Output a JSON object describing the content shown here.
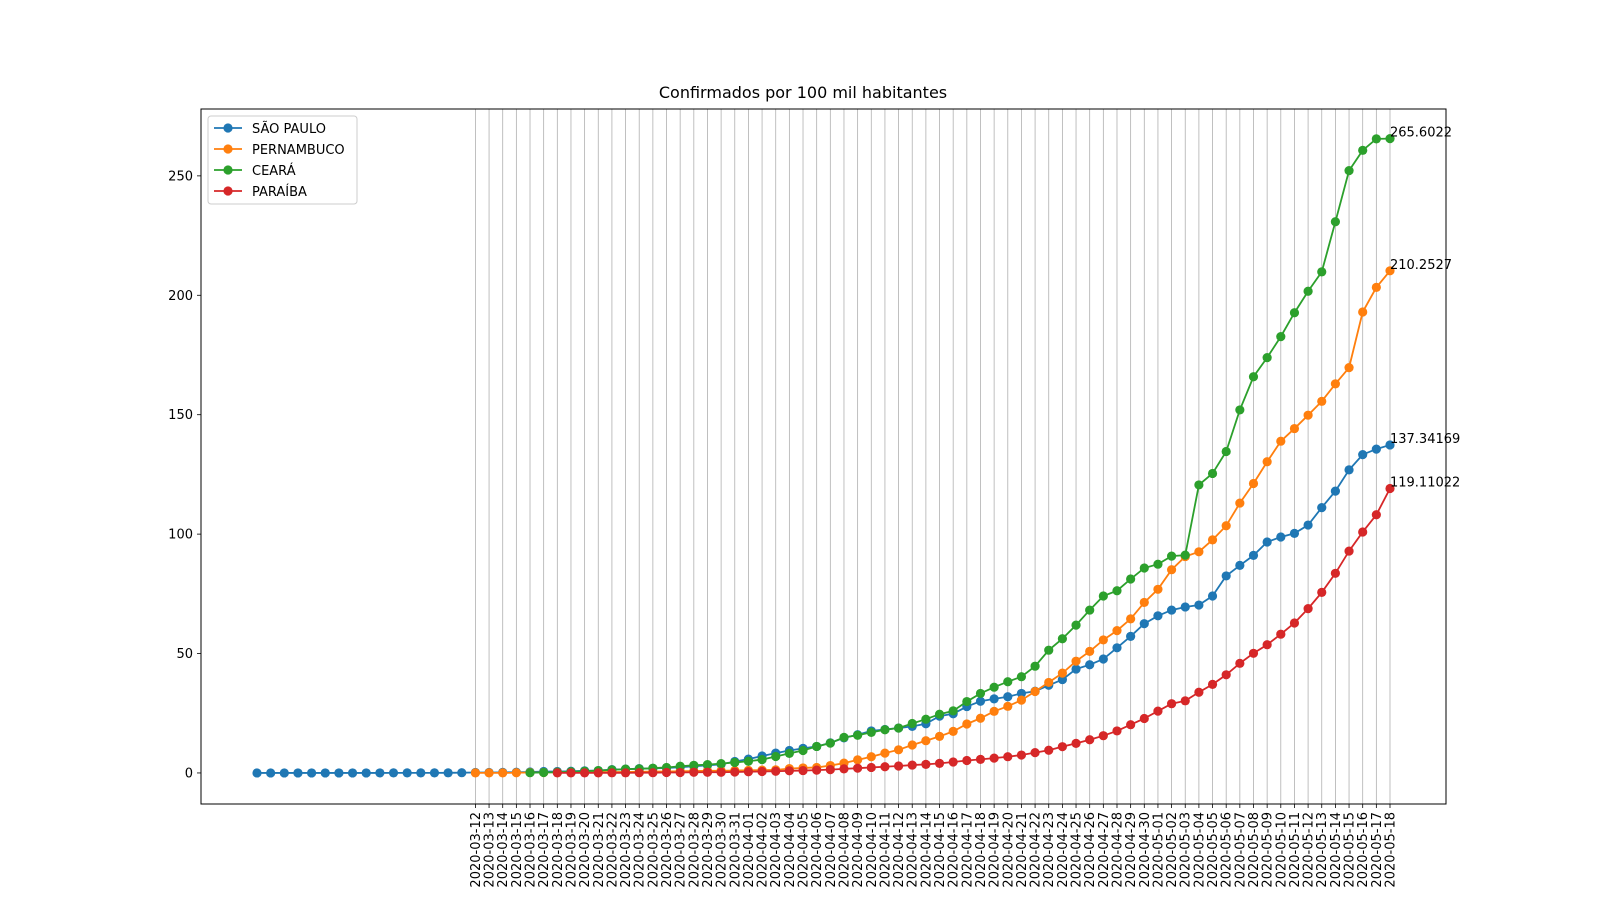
{
  "chart_data": {
    "type": "line",
    "title": "Confirmados por 100 mil habitantes",
    "xlabel": "",
    "ylabel": "",
    "ylim": [
      -13,
      278
    ],
    "yticks": [
      0,
      50,
      100,
      150,
      200,
      250
    ],
    "grid": "vertical lines at labeled dates",
    "legend_position": "top-left",
    "x_tick_labels": [
      "2020-03-12",
      "2020-03-13",
      "2020-03-14",
      "2020-03-15",
      "2020-03-16",
      "2020-03-17",
      "2020-03-18",
      "2020-03-19",
      "2020-03-20",
      "2020-03-21",
      "2020-03-22",
      "2020-03-23",
      "2020-03-24",
      "2020-03-25",
      "2020-03-26",
      "2020-03-27",
      "2020-03-28",
      "2020-03-29",
      "2020-03-30",
      "2020-03-31",
      "2020-04-01",
      "2020-04-02",
      "2020-04-03",
      "2020-04-04",
      "2020-04-05",
      "2020-04-06",
      "2020-04-07",
      "2020-04-08",
      "2020-04-09",
      "2020-04-10",
      "2020-04-11",
      "2020-04-12",
      "2020-04-13",
      "2020-04-14",
      "2020-04-15",
      "2020-04-16",
      "2020-04-17",
      "2020-04-18",
      "2020-04-19",
      "2020-04-20",
      "2020-04-21",
      "2020-04-22",
      "2020-04-23",
      "2020-04-24",
      "2020-04-25",
      "2020-04-26",
      "2020-04-27",
      "2020-04-28",
      "2020-04-29",
      "2020-04-30",
      "2020-05-01",
      "2020-05-02",
      "2020-05-03",
      "2020-05-04",
      "2020-05-05",
      "2020-05-06",
      "2020-05-07",
      "2020-05-08",
      "2020-05-09",
      "2020-05-10",
      "2020-05-11",
      "2020-05-12",
      "2020-05-13",
      "2020-05-14",
      "2020-05-15",
      "2020-05-16",
      "2020-05-17",
      "2020-05-18"
    ],
    "series": [
      {
        "name": "SÃO PAULO",
        "color": "#1f77b4",
        "x": [
          "2020-02-25",
          "2020-02-26",
          "2020-02-27",
          "2020-02-28",
          "2020-02-29",
          "2020-03-01",
          "2020-03-02",
          "2020-03-03",
          "2020-03-04",
          "2020-03-05",
          "2020-03-06",
          "2020-03-07",
          "2020-03-08",
          "2020-03-09",
          "2020-03-10",
          "2020-03-11",
          "2020-03-12",
          "2020-03-13",
          "2020-03-14",
          "2020-03-15",
          "2020-03-16",
          "2020-03-17",
          "2020-03-18",
          "2020-03-19",
          "2020-03-20",
          "2020-03-21",
          "2020-03-22",
          "2020-03-23",
          "2020-03-24",
          "2020-03-25",
          "2020-03-26",
          "2020-03-27",
          "2020-03-28",
          "2020-03-29",
          "2020-03-30",
          "2020-03-31",
          "2020-04-01",
          "2020-04-02",
          "2020-04-03",
          "2020-04-04",
          "2020-04-05",
          "2020-04-06",
          "2020-04-07",
          "2020-04-08",
          "2020-04-09",
          "2020-04-10",
          "2020-04-11",
          "2020-04-12",
          "2020-04-13",
          "2020-04-14",
          "2020-04-15",
          "2020-04-16",
          "2020-04-17",
          "2020-04-18",
          "2020-04-19",
          "2020-04-20",
          "2020-04-21",
          "2020-04-22",
          "2020-04-23",
          "2020-04-24",
          "2020-04-25",
          "2020-04-26",
          "2020-04-27",
          "2020-04-28",
          "2020-04-29",
          "2020-04-30",
          "2020-05-01",
          "2020-05-02",
          "2020-05-03",
          "2020-05-04",
          "2020-05-05",
          "2020-05-06",
          "2020-05-07",
          "2020-05-08",
          "2020-05-09",
          "2020-05-10",
          "2020-05-11",
          "2020-05-12",
          "2020-05-13",
          "2020-05-14",
          "2020-05-15",
          "2020-05-16",
          "2020-05-17",
          "2020-05-18"
        ],
        "values": [
          0.002,
          0.002,
          0.002,
          0.004,
          0.004,
          0.004,
          0.005,
          0.007,
          0.007,
          0.01,
          0.03,
          0.04,
          0.04,
          0.04,
          0.05,
          0.1,
          0.2,
          0.2,
          0.25,
          0.3,
          0.4,
          0.6,
          0.6,
          0.7,
          0.9,
          1.0,
          1.4,
          1.6,
          1.8,
          1.9,
          2.1,
          2.4,
          2.8,
          3.2,
          3.6,
          4.8,
          5.8,
          7.1,
          8.3,
          9.4,
          10.3,
          11.1,
          12.6,
          14.7,
          16.0,
          17.6,
          18.2,
          18.8,
          19.5,
          20.6,
          23.8,
          24.8,
          27.8,
          30.0,
          31.0,
          31.9,
          33.3,
          34.2,
          36.7,
          39.1,
          43.5,
          45.3,
          47.7,
          52.4,
          57.2,
          62.5,
          65.8,
          68.2,
          69.5,
          70.3,
          74.1,
          82.5,
          86.9,
          91.1,
          96.7,
          98.8,
          100.3,
          103.8,
          111.1,
          118.0,
          126.9,
          133.3,
          135.6,
          137.34169
        ],
        "end_label": "137.34169"
      },
      {
        "name": "PERNAMBUCO",
        "color": "#ff7f0e",
        "x": [
          "2020-03-12",
          "2020-03-13",
          "2020-03-14",
          "2020-03-15",
          "2020-03-16",
          "2020-03-17",
          "2020-03-18",
          "2020-03-19",
          "2020-03-20",
          "2020-03-21",
          "2020-03-22",
          "2020-03-23",
          "2020-03-24",
          "2020-03-25",
          "2020-03-26",
          "2020-03-27",
          "2020-03-28",
          "2020-03-29",
          "2020-03-30",
          "2020-03-31",
          "2020-04-01",
          "2020-04-02",
          "2020-04-03",
          "2020-04-04",
          "2020-04-05",
          "2020-04-06",
          "2020-04-07",
          "2020-04-08",
          "2020-04-09",
          "2020-04-10",
          "2020-04-11",
          "2020-04-12",
          "2020-04-13",
          "2020-04-14",
          "2020-04-15",
          "2020-04-16",
          "2020-04-17",
          "2020-04-18",
          "2020-04-19",
          "2020-04-20",
          "2020-04-21",
          "2020-04-22",
          "2020-04-23",
          "2020-04-24",
          "2020-04-25",
          "2020-04-26",
          "2020-04-27",
          "2020-04-28",
          "2020-04-29",
          "2020-04-30",
          "2020-05-01",
          "2020-05-02",
          "2020-05-03",
          "2020-05-04",
          "2020-05-05",
          "2020-05-06",
          "2020-05-07",
          "2020-05-08",
          "2020-05-09",
          "2020-05-10",
          "2020-05-11",
          "2020-05-12",
          "2020-05-13",
          "2020-05-14",
          "2020-05-15",
          "2020-05-16",
          "2020-05-17",
          "2020-05-18"
        ],
        "values": [
          0.02,
          0.02,
          0.02,
          0.07,
          0.2,
          0.2,
          0.3,
          0.3,
          0.4,
          0.4,
          0.4,
          0.4,
          0.5,
          0.6,
          0.6,
          0.7,
          0.8,
          0.9,
          0.9,
          1.0,
          1.1,
          1.2,
          1.3,
          1.8,
          2.1,
          2.3,
          3.1,
          4.1,
          5.5,
          6.8,
          8.3,
          9.7,
          11.7,
          13.5,
          15.3,
          17.4,
          20.5,
          22.9,
          25.8,
          27.9,
          30.5,
          34.1,
          37.9,
          41.8,
          46.8,
          50.9,
          55.7,
          59.6,
          64.5,
          71.4,
          76.9,
          85.1,
          90.6,
          92.6,
          97.6,
          103.5,
          113.0,
          121.2,
          130.3,
          138.9,
          144.2,
          149.8,
          155.6,
          162.9,
          169.7,
          193.0,
          203.3,
          210.2527
        ],
        "end_label": "210.2527"
      },
      {
        "name": "CEARÁ",
        "color": "#2ca02c",
        "x": [
          "2020-03-16",
          "2020-03-17",
          "2020-03-18",
          "2020-03-19",
          "2020-03-20",
          "2020-03-21",
          "2020-03-22",
          "2020-03-23",
          "2020-03-24",
          "2020-03-25",
          "2020-03-26",
          "2020-03-27",
          "2020-03-28",
          "2020-03-29",
          "2020-03-30",
          "2020-03-31",
          "2020-04-01",
          "2020-04-02",
          "2020-04-03",
          "2020-04-04",
          "2020-04-05",
          "2020-04-06",
          "2020-04-07",
          "2020-04-08",
          "2020-04-09",
          "2020-04-10",
          "2020-04-11",
          "2020-04-12",
          "2020-04-13",
          "2020-04-14",
          "2020-04-15",
          "2020-04-16",
          "2020-04-17",
          "2020-04-18",
          "2020-04-19",
          "2020-04-20",
          "2020-04-21",
          "2020-04-22",
          "2020-04-23",
          "2020-04-24",
          "2020-04-25",
          "2020-04-26",
          "2020-04-27",
          "2020-04-28",
          "2020-04-29",
          "2020-04-30",
          "2020-05-01",
          "2020-05-02",
          "2020-05-03",
          "2020-05-04",
          "2020-05-05",
          "2020-05-06",
          "2020-05-07",
          "2020-05-08",
          "2020-05-09",
          "2020-05-10",
          "2020-05-11",
          "2020-05-12",
          "2020-05-13",
          "2020-05-14",
          "2020-05-15",
          "2020-05-16",
          "2020-05-17",
          "2020-05-18"
        ],
        "values": [
          0.1,
          0.2,
          0.3,
          0.5,
          0.7,
          1.0,
          1.3,
          1.6,
          1.7,
          2.0,
          2.3,
          2.8,
          3.2,
          3.5,
          3.9,
          4.4,
          4.9,
          5.6,
          6.9,
          8.2,
          9.4,
          11.1,
          12.5,
          14.9,
          15.8,
          17.0,
          18.1,
          18.8,
          20.7,
          22.5,
          24.6,
          26.0,
          29.9,
          33.3,
          35.9,
          38.2,
          40.3,
          44.7,
          51.4,
          56.2,
          61.9,
          68.2,
          74.1,
          76.3,
          81.2,
          85.8,
          87.4,
          90.8,
          91.2,
          120.6,
          125.4,
          134.6,
          152.0,
          165.9,
          173.9,
          182.7,
          192.7,
          201.7,
          209.8,
          230.8,
          252.2,
          260.7,
          265.5,
          265.6022
        ],
        "end_label": "265.6022"
      },
      {
        "name": "PARAÍBA",
        "color": "#d62728",
        "x": [
          "2020-03-18",
          "2020-03-19",
          "2020-03-20",
          "2020-03-21",
          "2020-03-22",
          "2020-03-23",
          "2020-03-24",
          "2020-03-25",
          "2020-03-26",
          "2020-03-27",
          "2020-03-28",
          "2020-03-29",
          "2020-03-30",
          "2020-03-31",
          "2020-04-01",
          "2020-04-02",
          "2020-04-03",
          "2020-04-04",
          "2020-04-05",
          "2020-04-06",
          "2020-04-07",
          "2020-04-08",
          "2020-04-09",
          "2020-04-10",
          "2020-04-11",
          "2020-04-12",
          "2020-04-13",
          "2020-04-14",
          "2020-04-15",
          "2020-04-16",
          "2020-04-17",
          "2020-04-18",
          "2020-04-19",
          "2020-04-20",
          "2020-04-21",
          "2020-04-22",
          "2020-04-23",
          "2020-04-24",
          "2020-04-25",
          "2020-04-26",
          "2020-04-27",
          "2020-04-28",
          "2020-04-29",
          "2020-04-30",
          "2020-05-01",
          "2020-05-02",
          "2020-05-03",
          "2020-05-04",
          "2020-05-05",
          "2020-05-06",
          "2020-05-07",
          "2020-05-08",
          "2020-05-09",
          "2020-05-10",
          "2020-05-11",
          "2020-05-12",
          "2020-05-13",
          "2020-05-14",
          "2020-05-15",
          "2020-05-16",
          "2020-05-17",
          "2020-05-18"
        ],
        "values": [
          0.03,
          0.03,
          0.03,
          0.03,
          0.05,
          0.05,
          0.1,
          0.1,
          0.2,
          0.2,
          0.3,
          0.3,
          0.3,
          0.4,
          0.5,
          0.6,
          0.7,
          0.9,
          1.0,
          1.2,
          1.4,
          1.7,
          2.0,
          2.3,
          2.6,
          2.9,
          3.3,
          3.6,
          4.0,
          4.6,
          5.2,
          5.7,
          6.2,
          6.8,
          7.5,
          8.5,
          9.5,
          11.0,
          12.4,
          13.9,
          15.6,
          17.6,
          20.2,
          22.8,
          25.9,
          29.0,
          30.2,
          33.8,
          37.1,
          41.1,
          45.9,
          50.1,
          53.7,
          58.1,
          62.8,
          68.8,
          75.6,
          83.6,
          92.9,
          100.9,
          108.1,
          119.11022
        ],
        "end_label": "119.11022"
      }
    ]
  }
}
